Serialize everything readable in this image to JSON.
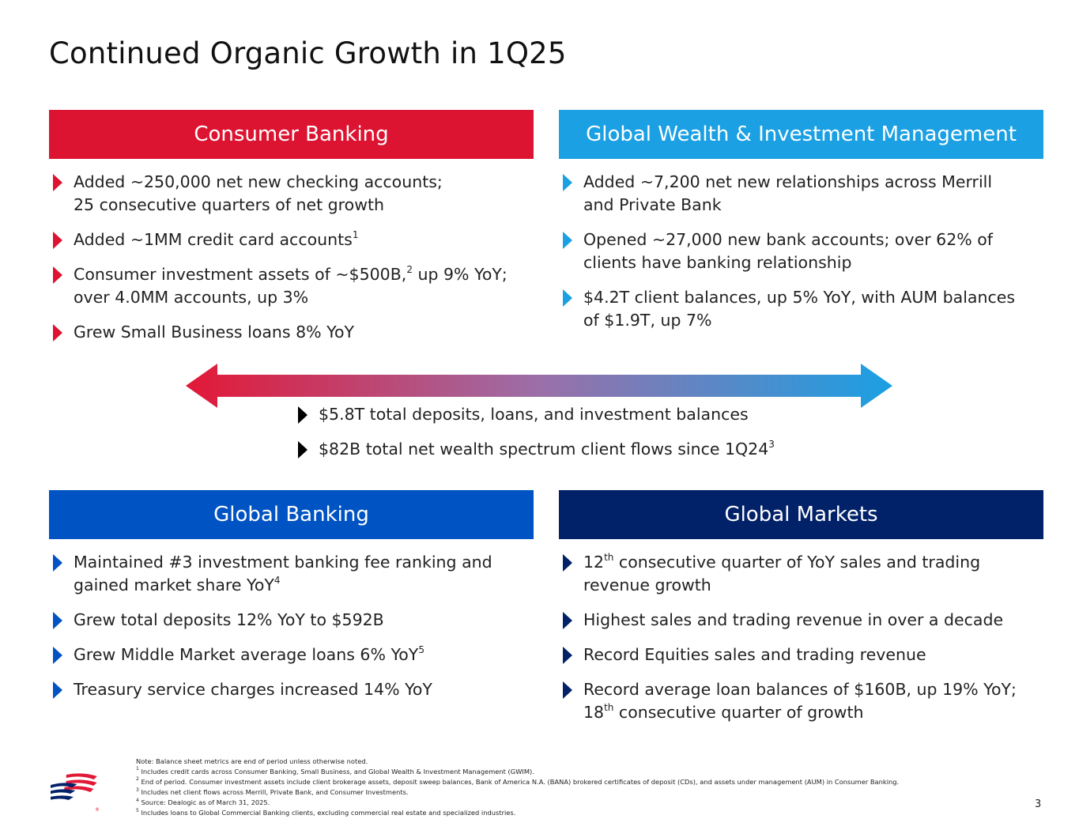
{
  "slide": {
    "title": "Continued Organic Growth in 1Q25",
    "page_number": "3"
  },
  "colors": {
    "consumer_red": "#DC1431",
    "gwim_light_blue": "#1AA0E3",
    "global_banking_blue": "#0053C2",
    "global_markets_navy": "#012169"
  },
  "consumer_banking": {
    "header": "Consumer Banking",
    "bullets": [
      {
        "text": "Added ~250,000 net new checking accounts;",
        "text2": "25 consecutive quarters of net growth"
      },
      {
        "text": "Added ~1MM credit card accounts",
        "sup": "1"
      },
      {
        "text": "Consumer investment assets of ~$500B,",
        "sup": "2",
        "text_after": " up 9% YoY;",
        "text2": "over 4.0MM accounts, up 3%"
      },
      {
        "text": "Grew Small Business loans 8% YoY"
      }
    ]
  },
  "gwim": {
    "header": "Global Wealth & Investment Management",
    "bullets": [
      {
        "text": "Added ~7,200 net new relationships across Merrill",
        "text2": "and Private Bank"
      },
      {
        "text": "Opened ~27,000 new bank accounts; over 62% of",
        "text2": "clients have banking relationship"
      },
      {
        "text": "$4.2T client balances, up 5% YoY, with AUM balances",
        "text2": "of $1.9T, up 7%"
      }
    ]
  },
  "center": {
    "bullets": [
      {
        "text": "$5.8T total deposits, loans, and investment balances"
      },
      {
        "text": "$82B total net wealth spectrum client flows since 1Q24",
        "sup": "3"
      }
    ]
  },
  "global_banking": {
    "header": "Global Banking",
    "bullets": [
      {
        "text": "Maintained #3 investment banking fee ranking and",
        "text2": "gained market share YoY",
        "sup2": "4"
      },
      {
        "text": "Grew total deposits 12% YoY to $592B"
      },
      {
        "text": "Grew Middle Market average loans 6% YoY",
        "sup": "5"
      },
      {
        "text": "Treasury service charges increased 14% YoY"
      }
    ]
  },
  "global_markets": {
    "header": "Global Markets",
    "bullets": [
      {
        "pre": "12",
        "pre_sup": "th",
        "text": " consecutive quarter of YoY sales and trading",
        "text2": "revenue growth"
      },
      {
        "text": "Highest sales and trading revenue in over a decade"
      },
      {
        "text": "Record Equities sales and trading revenue"
      },
      {
        "text": "Record average loan balances of $160B, up 19% YoY;",
        "pre2": "18",
        "pre2_sup": "th",
        "text2": " consecutive quarter of growth"
      }
    ]
  },
  "footnotes": [
    {
      "sup": "",
      "text": "Note: Balance sheet metrics are end of period unless otherwise noted."
    },
    {
      "sup": "1",
      "text": " Includes credit cards across Consumer Banking, Small Business, and Global Wealth & Investment Management (GWIM)."
    },
    {
      "sup": "2",
      "text": " End of period. Consumer investment assets include client brokerage assets, deposit sweep balances, Bank of America N.A. (BANA) brokered certificates of deposit (CDs), and assets under management (AUM) in Consumer Banking."
    },
    {
      "sup": "3",
      "text": " Includes net client flows across Merrill, Private Bank, and Consumer Investments."
    },
    {
      "sup": "4",
      "text": " Source: Dealogic as of March 31, 2025."
    },
    {
      "sup": "5",
      "text": " Includes loans to Global Commercial Banking clients, excluding commercial real estate and specialized industries."
    }
  ]
}
